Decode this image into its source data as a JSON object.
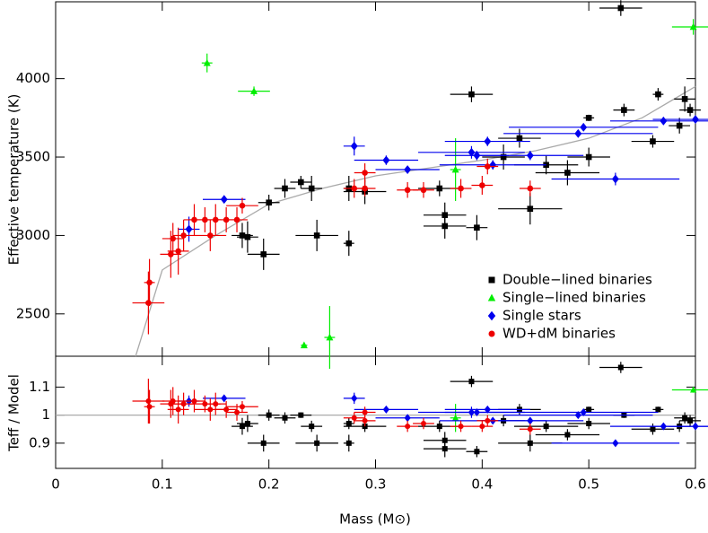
{
  "chart_data": {
    "type": "scatter",
    "xlabel": "Mass (M⊙)",
    "ylabel": "Effective temperature (K)",
    "y2label": "Teff / Model",
    "xlim": [
      0,
      0.6
    ],
    "xticks": [
      0,
      0.1,
      0.2,
      0.3,
      0.4,
      0.5,
      0.6
    ],
    "ylim": [
      2230,
      4490
    ],
    "yticks": [
      2500,
      3000,
      3500,
      4000
    ],
    "ratio_lim": [
      0.81,
      1.21
    ],
    "ratio_ticks": [
      0.9,
      1,
      1.1
    ],
    "legend": "lower right",
    "model": {
      "color": "#aaaaaa",
      "ratio_reference": 1,
      "mass": [
        0.075,
        0.1,
        0.15,
        0.2,
        0.25,
        0.3,
        0.35,
        0.4,
        0.45,
        0.5,
        0.55,
        0.6
      ],
      "teff": [
        2230,
        2780,
        3000,
        3200,
        3300,
        3380,
        3430,
        3480,
        3540,
        3620,
        3750,
        3950
      ]
    },
    "series": [
      {
        "name": "Double−lined binaries",
        "color": "#000000",
        "marker": "square",
        "mass": [
          0.175,
          0.18,
          0.195,
          0.2,
          0.215,
          0.23,
          0.24,
          0.245,
          0.275,
          0.275,
          0.29,
          0.36,
          0.365,
          0.365,
          0.39,
          0.395,
          0.42,
          0.435,
          0.445,
          0.46,
          0.48,
          0.5,
          0.5,
          0.53,
          0.533,
          0.56,
          0.565,
          0.585,
          0.59,
          0.595
        ],
        "teff": [
          3000,
          2990,
          2880,
          3210,
          3300,
          3340,
          3300,
          3000,
          2950,
          3300,
          3280,
          3300,
          3130,
          3060,
          3900,
          3050,
          3500,
          3620,
          3170,
          3450,
          3400,
          3500,
          3750,
          4450,
          3800,
          3600,
          3900,
          3700,
          3870,
          3800
        ],
        "mass_err": [
          0.01,
          0.01,
          0.015,
          0.01,
          0.01,
          0.01,
          0.01,
          0.02,
          0.005,
          0.005,
          0.02,
          0.02,
          0.02,
          0.02,
          0.02,
          0.01,
          0.02,
          0.02,
          0.03,
          0.03,
          0.03,
          0.02,
          0.005,
          0.02,
          0.01,
          0.02,
          0.005,
          0.01,
          0.01,
          0.01
        ],
        "teff_err": [
          80,
          100,
          100,
          50,
          60,
          40,
          80,
          100,
          80,
          80,
          80,
          50,
          80,
          80,
          50,
          80,
          80,
          60,
          100,
          60,
          80,
          60,
          20,
          50,
          40,
          40,
          40,
          50,
          80,
          40
        ],
        "ratio": [
          0.96,
          0.97,
          0.9,
          1.0,
          0.99,
          1.0,
          0.96,
          0.9,
          0.9,
          0.97,
          0.96,
          0.96,
          0.91,
          0.88,
          1.12,
          0.87,
          0.98,
          1.02,
          0.9,
          0.96,
          0.93,
          0.97,
          1.02,
          1.17,
          1.0,
          0.95,
          1.02,
          0.96,
          0.99,
          0.98
        ],
        "ratio_err": [
          0.03,
          0.03,
          0.03,
          0.02,
          0.02,
          0.01,
          0.02,
          0.03,
          0.03,
          0.02,
          0.02,
          0.02,
          0.03,
          0.03,
          0.02,
          0.02,
          0.02,
          0.02,
          0.03,
          0.02,
          0.02,
          0.02,
          0.01,
          0.02,
          0.01,
          0.02,
          0.01,
          0.02,
          0.02,
          0.02
        ]
      },
      {
        "name": "Single−lined binaries",
        "color": "#00ee00",
        "marker": "triangle",
        "mass": [
          0.142,
          0.186,
          0.233,
          0.257,
          0.375,
          0.598
        ],
        "teff": [
          4100,
          3920,
          2300,
          2350,
          3420,
          4330
        ],
        "mass_err": [
          0.005,
          0.015,
          0.003,
          0.005,
          0.005,
          0.02
        ],
        "teff_err": [
          60,
          30,
          10,
          200,
          200,
          50
        ],
        "ratio": [
          null,
          null,
          null,
          null,
          0.99,
          1.09
        ],
        "ratio_err": [
          null,
          null,
          null,
          null,
          0.05,
          0.01
        ]
      },
      {
        "name": "Single stars",
        "color": "#0000ee",
        "marker": "diamond",
        "mass": [
          0.125,
          0.158,
          0.28,
          0.31,
          0.33,
          0.39,
          0.395,
          0.405,
          0.41,
          0.445,
          0.49,
          0.495,
          0.525,
          0.57,
          0.6
        ],
        "teff": [
          3040,
          3230,
          3570,
          3480,
          3420,
          3530,
          3510,
          3600,
          3450,
          3510,
          3650,
          3690,
          3360,
          3730,
          3740
        ],
        "mass_err": [
          0.01,
          0.02,
          0.01,
          0.03,
          0.03,
          0.05,
          0.03,
          0.04,
          0.05,
          0.05,
          0.07,
          0.07,
          0.06,
          0.05,
          0.04
        ],
        "teff_err": [
          80,
          10,
          60,
          30,
          20,
          40,
          30,
          30,
          30,
          30,
          20,
          20,
          40,
          10,
          10
        ],
        "ratio": [
          1.05,
          1.06,
          1.06,
          1.02,
          0.99,
          1.01,
          1.01,
          1.02,
          0.98,
          0.98,
          1.0,
          1.01,
          0.9,
          0.96,
          0.96
        ],
        "ratio_err": [
          0.02,
          0.01,
          0.02,
          0.01,
          0.01,
          0.02,
          0.01,
          0.01,
          0.01,
          0.01,
          0.01,
          0.01,
          0.01,
          0.005,
          0.005
        ]
      },
      {
        "name": "WD+dM binaries",
        "color": "#ee0000",
        "marker": "circle",
        "mass": [
          0.087,
          0.088,
          0.108,
          0.11,
          0.115,
          0.12,
          0.13,
          0.14,
          0.145,
          0.15,
          0.16,
          0.17,
          0.175,
          0.28,
          0.29,
          0.29,
          0.33,
          0.345,
          0.38,
          0.4,
          0.405,
          0.445
        ],
        "teff": [
          2570,
          2700,
          2880,
          2980,
          2900,
          3000,
          3100,
          3100,
          3000,
          3100,
          3100,
          3100,
          3190,
          3300,
          3400,
          3300,
          3290,
          3290,
          3300,
          3320,
          3440,
          3300
        ],
        "mass_err": [
          0.015,
          0.005,
          0.01,
          0.01,
          0.01,
          0.01,
          0.01,
          0.015,
          0.015,
          0.01,
          0.01,
          0.01,
          0.015,
          0.01,
          0.01,
          0.01,
          0.01,
          0.01,
          0.01,
          0.01,
          0.01,
          0.01
        ],
        "teff_err": [
          200,
          150,
          150,
          100,
          150,
          100,
          100,
          80,
          100,
          100,
          80,
          80,
          50,
          60,
          60,
          50,
          50,
          50,
          60,
          60,
          50,
          50
        ],
        "ratio": [
          1.05,
          1.03,
          1.04,
          1.05,
          1.02,
          1.04,
          1.05,
          1.04,
          1.02,
          1.04,
          1.02,
          1.01,
          1.03,
          0.99,
          1.01,
          0.98,
          0.96,
          0.97,
          0.96,
          0.96,
          0.98,
          0.95
        ],
        "ratio_err": [
          0.08,
          0.06,
          0.05,
          0.05,
          0.05,
          0.04,
          0.04,
          0.03,
          0.04,
          0.04,
          0.03,
          0.03,
          0.02,
          0.02,
          0.02,
          0.02,
          0.02,
          0.02,
          0.02,
          0.02,
          0.02,
          0.02
        ]
      }
    ]
  }
}
